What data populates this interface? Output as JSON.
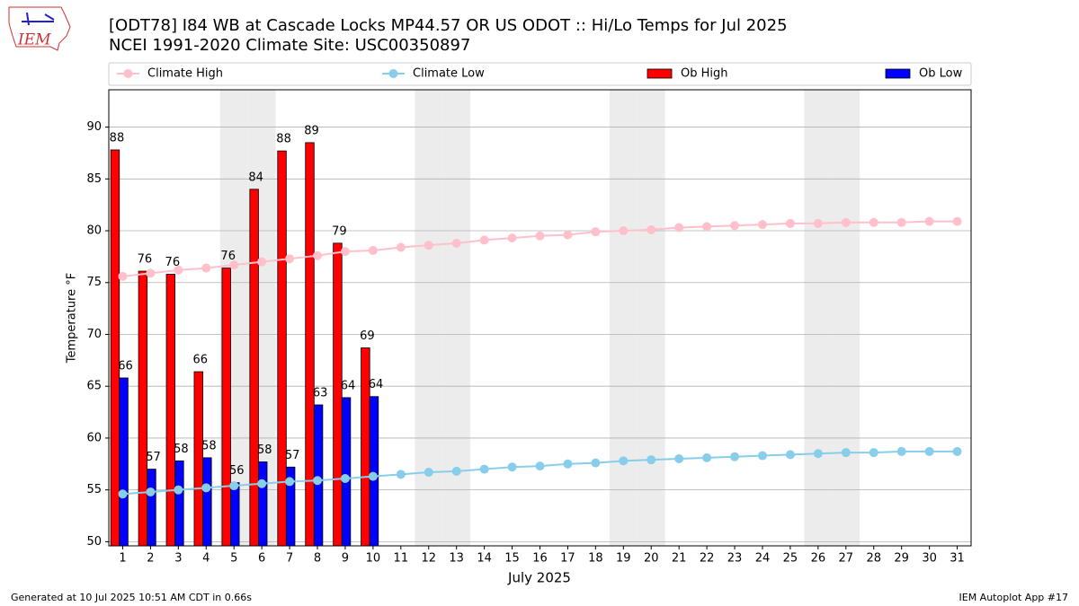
{
  "logo": "IEM",
  "footer": {
    "left": "Generated at 10 Jul 2025 10:51 AM CDT in 0.66s",
    "right": "IEM Autoplot App #17"
  },
  "chart_data": {
    "type": "bar",
    "title": "[ODT78] I84 WB at Cascade Locks MP44.57  OR US ODOT :: Hi/Lo Temps for Jul 2025",
    "subtitle": "NCEI 1991-2020 Climate Site: USC00350897",
    "x_label": "July 2025",
    "y_label": "Temperature °F",
    "x": [
      1,
      2,
      3,
      4,
      5,
      6,
      7,
      8,
      9,
      10,
      11,
      12,
      13,
      14,
      15,
      16,
      17,
      18,
      19,
      20,
      21,
      22,
      23,
      24,
      25,
      26,
      27,
      28,
      29,
      30,
      31
    ],
    "xlim": [
      0.5,
      31.5
    ],
    "xticks": [
      1,
      2,
      3,
      4,
      5,
      6,
      7,
      8,
      9,
      10,
      11,
      12,
      13,
      14,
      15,
      16,
      17,
      18,
      19,
      20,
      21,
      22,
      23,
      24,
      25,
      26,
      27,
      28,
      29,
      30,
      31
    ],
    "ylim": [
      49.6,
      93.6
    ],
    "yticks": [
      50,
      55,
      60,
      65,
      70,
      75,
      80,
      85,
      90
    ],
    "grid": true,
    "shaded_days": [
      5,
      6,
      12,
      13,
      19,
      20,
      26,
      27
    ],
    "series": [
      {
        "name": "Climate High",
        "type": "line",
        "color": "#ffc0cb",
        "values": [
          75.6,
          75.9,
          76.2,
          76.4,
          76.7,
          77.0,
          77.3,
          77.6,
          78.0,
          78.1,
          78.4,
          78.6,
          78.8,
          79.1,
          79.3,
          79.5,
          79.6,
          79.9,
          80.0,
          80.1,
          80.3,
          80.4,
          80.5,
          80.6,
          80.7,
          80.7,
          80.8,
          80.8,
          80.8,
          80.9,
          80.9
        ]
      },
      {
        "name": "Climate Low",
        "type": "line",
        "color": "#87ceeb",
        "values": [
          54.6,
          54.8,
          55.0,
          55.2,
          55.4,
          55.6,
          55.8,
          55.9,
          56.1,
          56.3,
          56.5,
          56.7,
          56.8,
          57.0,
          57.2,
          57.3,
          57.5,
          57.6,
          57.8,
          57.9,
          58.0,
          58.1,
          58.2,
          58.3,
          58.4,
          58.5,
          58.6,
          58.6,
          58.7,
          58.7,
          58.7
        ]
      },
      {
        "name": "Ob High",
        "type": "bar",
        "color": "#ff0000",
        "values": [
          87.8,
          76.1,
          75.8,
          66.4,
          76.4,
          84.0,
          87.7,
          88.5,
          78.8,
          68.7,
          null,
          null,
          null,
          null,
          null,
          null,
          null,
          null,
          null,
          null,
          null,
          null,
          null,
          null,
          null,
          null,
          null,
          null,
          null,
          null,
          null
        ],
        "value_labels": [
          "88",
          "76",
          "76",
          "66",
          "76",
          "84",
          "88",
          "89",
          "79",
          "69",
          null,
          null,
          null,
          null,
          null,
          null,
          null,
          null,
          null,
          null,
          null,
          null,
          null,
          null,
          null,
          null,
          null,
          null,
          null,
          null,
          null
        ]
      },
      {
        "name": "Ob Low",
        "type": "bar",
        "color": "#0000ff",
        "values": [
          65.8,
          57.0,
          57.8,
          58.1,
          55.7,
          57.7,
          57.2,
          63.2,
          63.9,
          64.0,
          null,
          null,
          null,
          null,
          null,
          null,
          null,
          null,
          null,
          null,
          null,
          null,
          null,
          null,
          null,
          null,
          null,
          null,
          null,
          null,
          null
        ],
        "value_labels": [
          "66",
          "57",
          "58",
          "58",
          "56",
          "58",
          "57",
          "63",
          "64",
          "64",
          null,
          null,
          null,
          null,
          null,
          null,
          null,
          null,
          null,
          null,
          null,
          null,
          null,
          null,
          null,
          null,
          null,
          null,
          null,
          null,
          null
        ]
      }
    ]
  }
}
